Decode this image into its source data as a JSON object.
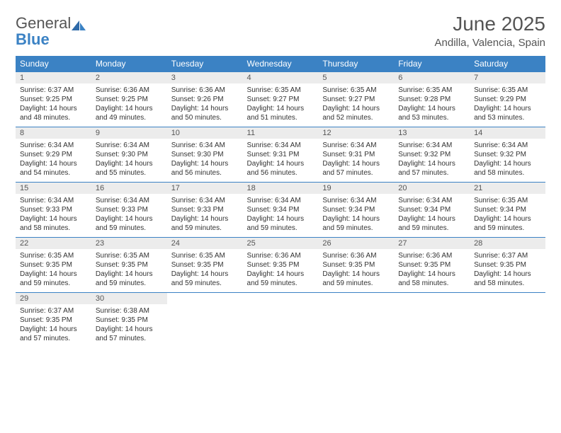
{
  "brand": {
    "part1": "General",
    "part2": "Blue"
  },
  "title": "June 2025",
  "location": "Andilla, Valencia, Spain",
  "colors": {
    "header_bg": "#3b82c4",
    "header_text": "#ffffff",
    "daynum_bg": "#ececec",
    "text": "#333333",
    "title_text": "#555555",
    "border": "#3b82c4"
  },
  "dows": [
    "Sunday",
    "Monday",
    "Tuesday",
    "Wednesday",
    "Thursday",
    "Friday",
    "Saturday"
  ],
  "weeks": [
    [
      {
        "day": "1",
        "sunrise": "Sunrise: 6:37 AM",
        "sunset": "Sunset: 9:25 PM",
        "dl1": "Daylight: 14 hours",
        "dl2": "and 48 minutes."
      },
      {
        "day": "2",
        "sunrise": "Sunrise: 6:36 AM",
        "sunset": "Sunset: 9:25 PM",
        "dl1": "Daylight: 14 hours",
        "dl2": "and 49 minutes."
      },
      {
        "day": "3",
        "sunrise": "Sunrise: 6:36 AM",
        "sunset": "Sunset: 9:26 PM",
        "dl1": "Daylight: 14 hours",
        "dl2": "and 50 minutes."
      },
      {
        "day": "4",
        "sunrise": "Sunrise: 6:35 AM",
        "sunset": "Sunset: 9:27 PM",
        "dl1": "Daylight: 14 hours",
        "dl2": "and 51 minutes."
      },
      {
        "day": "5",
        "sunrise": "Sunrise: 6:35 AM",
        "sunset": "Sunset: 9:27 PM",
        "dl1": "Daylight: 14 hours",
        "dl2": "and 52 minutes."
      },
      {
        "day": "6",
        "sunrise": "Sunrise: 6:35 AM",
        "sunset": "Sunset: 9:28 PM",
        "dl1": "Daylight: 14 hours",
        "dl2": "and 53 minutes."
      },
      {
        "day": "7",
        "sunrise": "Sunrise: 6:35 AM",
        "sunset": "Sunset: 9:29 PM",
        "dl1": "Daylight: 14 hours",
        "dl2": "and 53 minutes."
      }
    ],
    [
      {
        "day": "8",
        "sunrise": "Sunrise: 6:34 AM",
        "sunset": "Sunset: 9:29 PM",
        "dl1": "Daylight: 14 hours",
        "dl2": "and 54 minutes."
      },
      {
        "day": "9",
        "sunrise": "Sunrise: 6:34 AM",
        "sunset": "Sunset: 9:30 PM",
        "dl1": "Daylight: 14 hours",
        "dl2": "and 55 minutes."
      },
      {
        "day": "10",
        "sunrise": "Sunrise: 6:34 AM",
        "sunset": "Sunset: 9:30 PM",
        "dl1": "Daylight: 14 hours",
        "dl2": "and 56 minutes."
      },
      {
        "day": "11",
        "sunrise": "Sunrise: 6:34 AM",
        "sunset": "Sunset: 9:31 PM",
        "dl1": "Daylight: 14 hours",
        "dl2": "and 56 minutes."
      },
      {
        "day": "12",
        "sunrise": "Sunrise: 6:34 AM",
        "sunset": "Sunset: 9:31 PM",
        "dl1": "Daylight: 14 hours",
        "dl2": "and 57 minutes."
      },
      {
        "day": "13",
        "sunrise": "Sunrise: 6:34 AM",
        "sunset": "Sunset: 9:32 PM",
        "dl1": "Daylight: 14 hours",
        "dl2": "and 57 minutes."
      },
      {
        "day": "14",
        "sunrise": "Sunrise: 6:34 AM",
        "sunset": "Sunset: 9:32 PM",
        "dl1": "Daylight: 14 hours",
        "dl2": "and 58 minutes."
      }
    ],
    [
      {
        "day": "15",
        "sunrise": "Sunrise: 6:34 AM",
        "sunset": "Sunset: 9:33 PM",
        "dl1": "Daylight: 14 hours",
        "dl2": "and 58 minutes."
      },
      {
        "day": "16",
        "sunrise": "Sunrise: 6:34 AM",
        "sunset": "Sunset: 9:33 PM",
        "dl1": "Daylight: 14 hours",
        "dl2": "and 59 minutes."
      },
      {
        "day": "17",
        "sunrise": "Sunrise: 6:34 AM",
        "sunset": "Sunset: 9:33 PM",
        "dl1": "Daylight: 14 hours",
        "dl2": "and 59 minutes."
      },
      {
        "day": "18",
        "sunrise": "Sunrise: 6:34 AM",
        "sunset": "Sunset: 9:34 PM",
        "dl1": "Daylight: 14 hours",
        "dl2": "and 59 minutes."
      },
      {
        "day": "19",
        "sunrise": "Sunrise: 6:34 AM",
        "sunset": "Sunset: 9:34 PM",
        "dl1": "Daylight: 14 hours",
        "dl2": "and 59 minutes."
      },
      {
        "day": "20",
        "sunrise": "Sunrise: 6:34 AM",
        "sunset": "Sunset: 9:34 PM",
        "dl1": "Daylight: 14 hours",
        "dl2": "and 59 minutes."
      },
      {
        "day": "21",
        "sunrise": "Sunrise: 6:35 AM",
        "sunset": "Sunset: 9:34 PM",
        "dl1": "Daylight: 14 hours",
        "dl2": "and 59 minutes."
      }
    ],
    [
      {
        "day": "22",
        "sunrise": "Sunrise: 6:35 AM",
        "sunset": "Sunset: 9:35 PM",
        "dl1": "Daylight: 14 hours",
        "dl2": "and 59 minutes."
      },
      {
        "day": "23",
        "sunrise": "Sunrise: 6:35 AM",
        "sunset": "Sunset: 9:35 PM",
        "dl1": "Daylight: 14 hours",
        "dl2": "and 59 minutes."
      },
      {
        "day": "24",
        "sunrise": "Sunrise: 6:35 AM",
        "sunset": "Sunset: 9:35 PM",
        "dl1": "Daylight: 14 hours",
        "dl2": "and 59 minutes."
      },
      {
        "day": "25",
        "sunrise": "Sunrise: 6:36 AM",
        "sunset": "Sunset: 9:35 PM",
        "dl1": "Daylight: 14 hours",
        "dl2": "and 59 minutes."
      },
      {
        "day": "26",
        "sunrise": "Sunrise: 6:36 AM",
        "sunset": "Sunset: 9:35 PM",
        "dl1": "Daylight: 14 hours",
        "dl2": "and 59 minutes."
      },
      {
        "day": "27",
        "sunrise": "Sunrise: 6:36 AM",
        "sunset": "Sunset: 9:35 PM",
        "dl1": "Daylight: 14 hours",
        "dl2": "and 58 minutes."
      },
      {
        "day": "28",
        "sunrise": "Sunrise: 6:37 AM",
        "sunset": "Sunset: 9:35 PM",
        "dl1": "Daylight: 14 hours",
        "dl2": "and 58 minutes."
      }
    ],
    [
      {
        "day": "29",
        "sunrise": "Sunrise: 6:37 AM",
        "sunset": "Sunset: 9:35 PM",
        "dl1": "Daylight: 14 hours",
        "dl2": "and 57 minutes."
      },
      {
        "day": "30",
        "sunrise": "Sunrise: 6:38 AM",
        "sunset": "Sunset: 9:35 PM",
        "dl1": "Daylight: 14 hours",
        "dl2": "and 57 minutes."
      },
      null,
      null,
      null,
      null,
      null
    ]
  ]
}
